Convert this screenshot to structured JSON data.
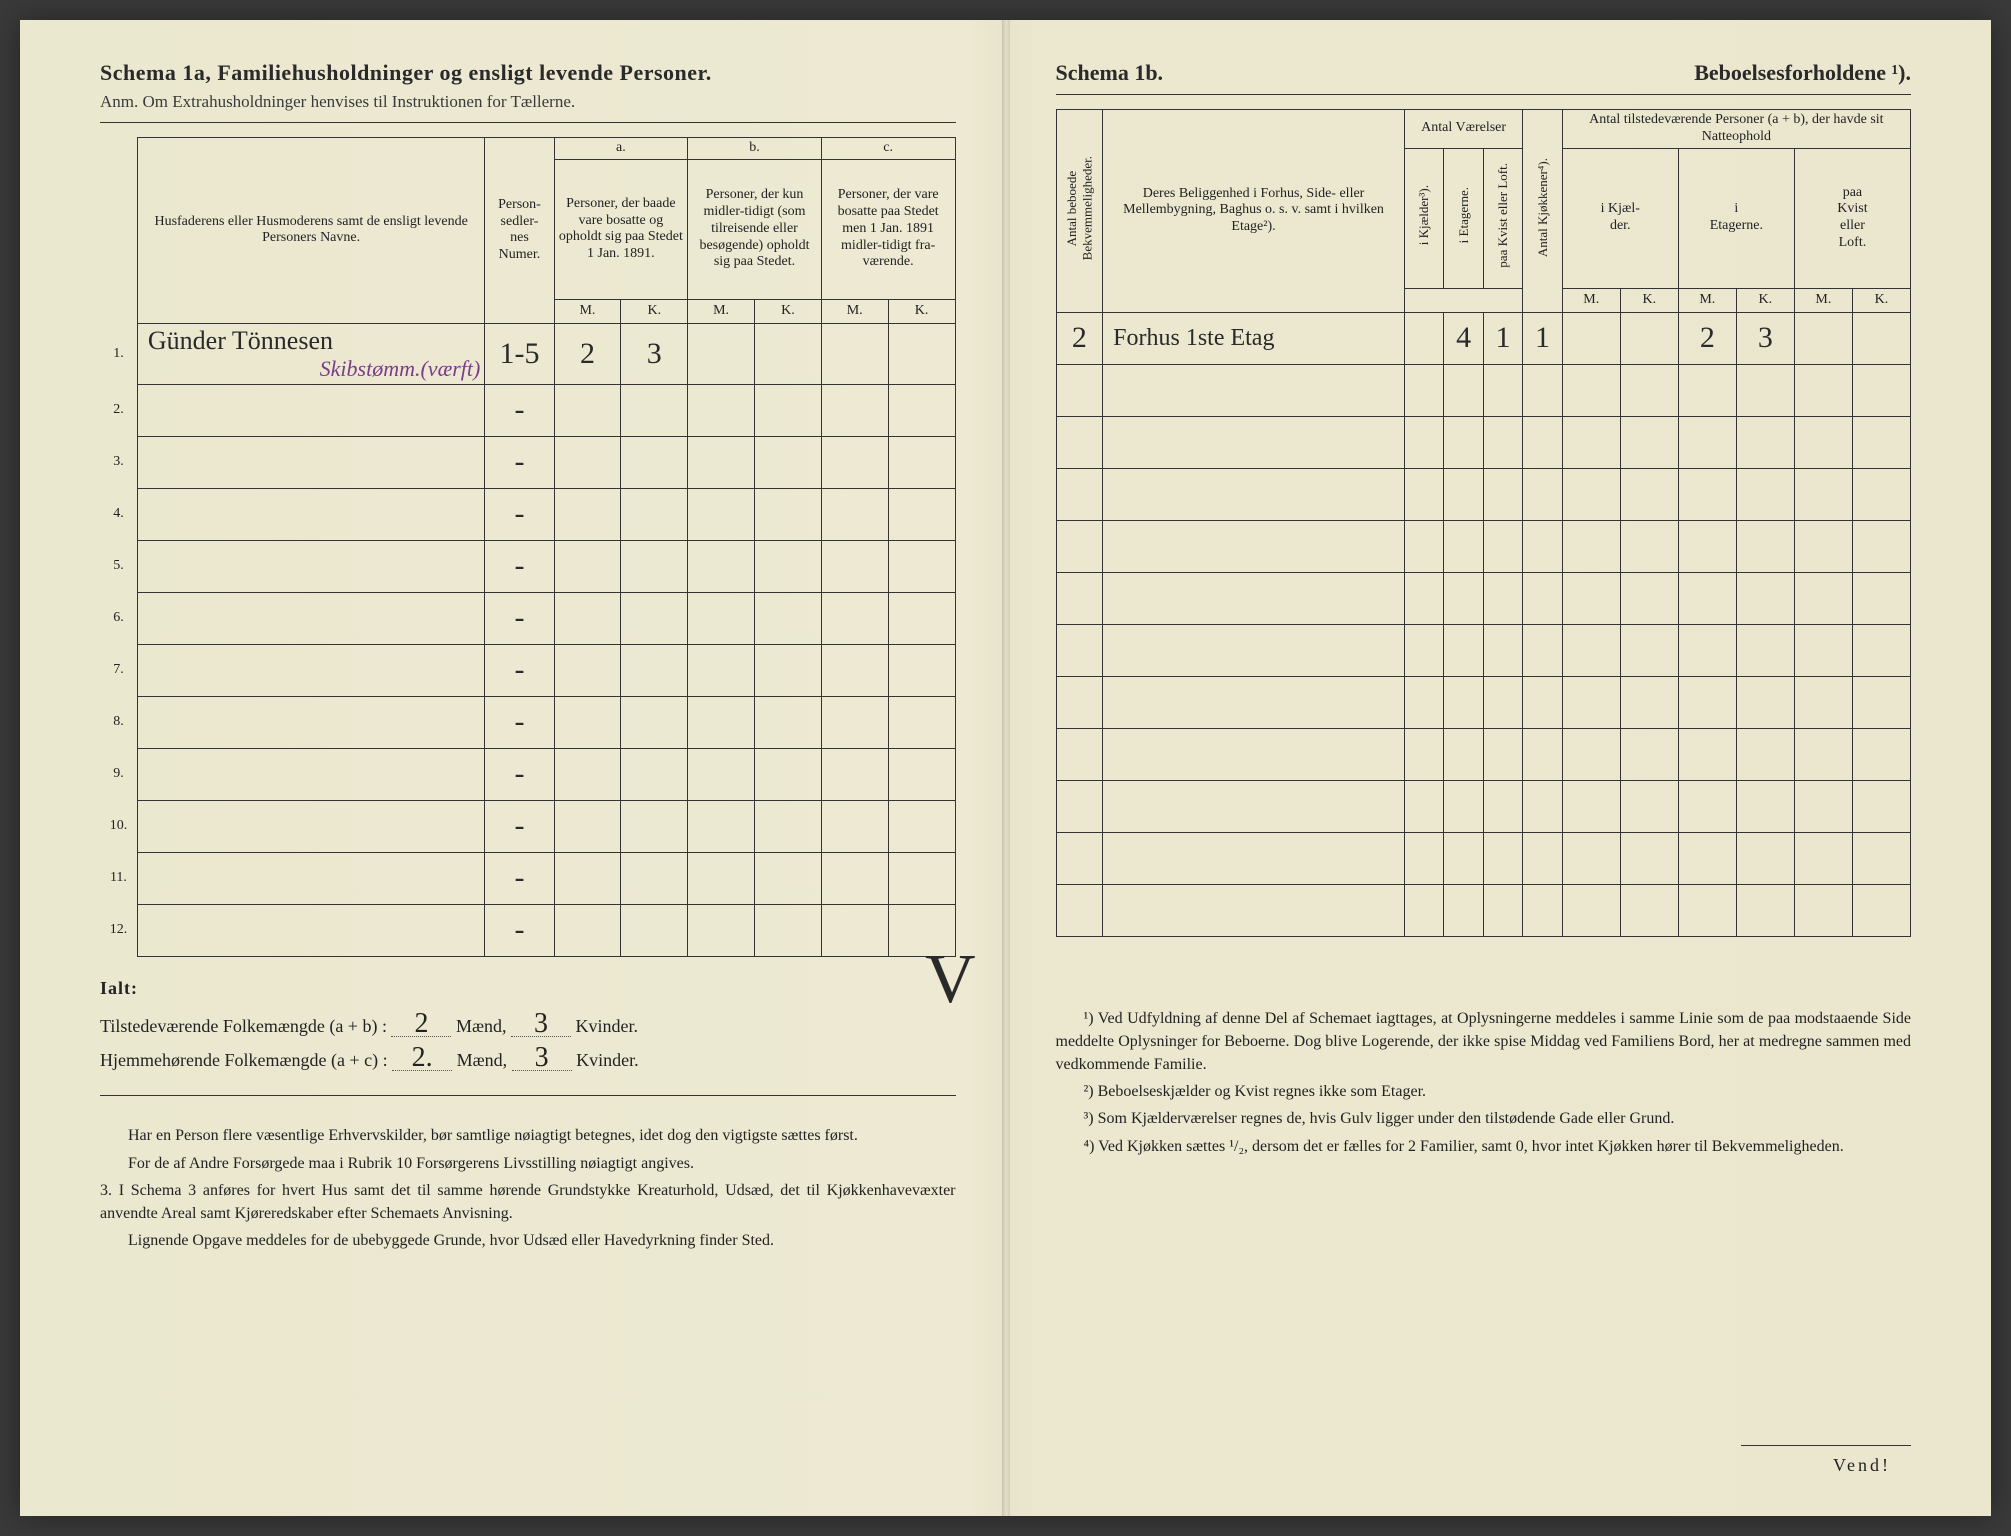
{
  "left": {
    "schema_title": "Schema 1a,  Familiehusholdninger og ensligt levende Personer.",
    "anm": "Anm. Om Extrahusholdninger henvises til Instruktionen for Tællerne.",
    "headers": {
      "name": "Husfaderens eller Husmoderens samt de ensligt levende Personers Navne.",
      "person_nums": "Person-\nsedler-\nnes\nNumer.",
      "a_label": "a.",
      "a_text": "Personer, der baade vare bosatte og opholdt sig paa Stedet 1 Jan. 1891.",
      "b_label": "b.",
      "b_text": "Personer, der kun midler-tidigt (som tilreisende eller besøgende) opholdt sig paa Stedet.",
      "c_label": "c.",
      "c_text": "Personer, der vare bosatte paa Stedet men 1 Jan. 1891 midler-tidigt fra-værende.",
      "M": "M.",
      "K": "K."
    },
    "rows": [
      {
        "n": "1.",
        "name": "Günder Tönnesen",
        "nums": "1-5",
        "aM": "2",
        "aK": "3",
        "bM": "",
        "bK": "",
        "cM": "",
        "cK": "",
        "note": "Skibstømm.(værft)"
      },
      {
        "n": "2.",
        "name": "",
        "nums": "-",
        "aM": "",
        "aK": "",
        "bM": "",
        "bK": "",
        "cM": "",
        "cK": "",
        "note": ""
      },
      {
        "n": "3.",
        "name": "",
        "nums": "-",
        "aM": "",
        "aK": "",
        "bM": "",
        "bK": "",
        "cM": "",
        "cK": "",
        "note": ""
      },
      {
        "n": "4.",
        "name": "",
        "nums": "-",
        "aM": "",
        "aK": "",
        "bM": "",
        "bK": "",
        "cM": "",
        "cK": "",
        "note": ""
      },
      {
        "n": "5.",
        "name": "",
        "nums": "-",
        "aM": "",
        "aK": "",
        "bM": "",
        "bK": "",
        "cM": "",
        "cK": "",
        "note": ""
      },
      {
        "n": "6.",
        "name": "",
        "nums": "-",
        "aM": "",
        "aK": "",
        "bM": "",
        "bK": "",
        "cM": "",
        "cK": "",
        "note": ""
      },
      {
        "n": "7.",
        "name": "",
        "nums": "-",
        "aM": "",
        "aK": "",
        "bM": "",
        "bK": "",
        "cM": "",
        "cK": "",
        "note": ""
      },
      {
        "n": "8.",
        "name": "",
        "nums": "-",
        "aM": "",
        "aK": "",
        "bM": "",
        "bK": "",
        "cM": "",
        "cK": "",
        "note": ""
      },
      {
        "n": "9.",
        "name": "",
        "nums": "-",
        "aM": "",
        "aK": "",
        "bM": "",
        "bK": "",
        "cM": "",
        "cK": "",
        "note": ""
      },
      {
        "n": "10.",
        "name": "",
        "nums": "-",
        "aM": "",
        "aK": "",
        "bM": "",
        "bK": "",
        "cM": "",
        "cK": "",
        "note": ""
      },
      {
        "n": "11.",
        "name": "",
        "nums": "-",
        "aM": "",
        "aK": "",
        "bM": "",
        "bK": "",
        "cM": "",
        "cK": "",
        "note": ""
      },
      {
        "n": "12.",
        "name": "",
        "nums": "-",
        "aM": "",
        "aK": "",
        "bM": "",
        "bK": "",
        "cM": "",
        "cK": "",
        "note": ""
      }
    ],
    "totals": {
      "ialt": "Ialt:",
      "line1_a": "Tilstedeværende Folkemængde (a + b) : ",
      "line1_m": "2",
      "line1_mid": " Mænd, ",
      "line1_k": "3",
      "line1_end": " Kvinder.",
      "line2_a": "Hjemmehørende Folkemængde (a + c) : ",
      "line2_m": "2.",
      "line2_mid": " Mænd, ",
      "line2_k": "3",
      "line2_end": " Kvinder."
    },
    "footnotes": [
      "Har en Person flere væsentlige Erhvervskilder, bør samtlige nøiagtigt betegnes, idet dog den vigtigste sættes først.",
      "For de af Andre Forsørgede maa i Rubrik 10 Forsørgerens Livsstilling nøiagtigt angives.",
      "3. I Schema 3 anføres for hvert Hus samt det til samme hørende Grundstykke Kreaturhold, Udsæd, det til Kjøkkenhavevæxter anvendte Areal samt Kjøreredskaber efter Schemaets Anvisning.",
      "Lignende Opgave meddeles for de ubebyggede Grunde, hvor Udsæd eller Havedyrkning finder Sted."
    ]
  },
  "right": {
    "schema_title": "Schema 1b.",
    "schema_title2": "Beboelsesforholdene ¹).",
    "headers": {
      "bekv": "Antal beboede\nBekvemmeligheder.",
      "belig": "Deres Beliggenhed i Forhus, Side- eller Mellembygning, Baghus o. s. v. samt i hvilken Etage²).",
      "antal_v": "Antal Værelser",
      "kjael": "i Kjælder³).",
      "etag": "i Etagerne.",
      "kvist": "paa Kvist eller Loft.",
      "kjokken": "Antal Kjøkkener⁴).",
      "present": "Antal tilstedeværende Personer (a + b), der havde sit Natteophold",
      "p_kjael": "i Kjæl-\nder.",
      "p_etag": "i\nEtagerne.",
      "p_kvist": "paa\nKvist\neller\nLoft.",
      "M": "M.",
      "K": "K."
    },
    "rows": [
      {
        "bekv": "2",
        "belig": "Forhus 1ste Etag",
        "kj": "",
        "et": "4",
        "kv": "1",
        "kk": "1",
        "pkM": "",
        "pkK": "",
        "peM": "2",
        "peK": "3",
        "pvM": "",
        "pvK": ""
      }
    ],
    "blank_rows": 11,
    "footnotes": [
      "¹) Ved Udfyldning af denne Del af Schemaet iagttages, at Oplysningerne meddeles i samme Linie som de paa modstaaende Side meddelte Oplysninger for Beboerne. Dog blive Logerende, der ikke spise Middag ved Familiens Bord, her at medregne sammen med vedkommende Familie.",
      "²) Beboelseskjælder og Kvist regnes ikke som Etager.",
      "³) Som Kjælderværelser regnes de, hvis Gulv ligger under den tilstødende Gade eller Grund.",
      "⁴) Ved Kjøkken sættes ¹/₂, dersom det er fælles for 2 Familier, samt 0, hvor intet Kjøkken hører til Bekvemmeligheden."
    ],
    "vend": "Vend!"
  },
  "colors": {
    "ink": "#2a2a2a",
    "purple": "#7a3d8a",
    "paper": "#ebe7cf",
    "rule": "#333333"
  }
}
